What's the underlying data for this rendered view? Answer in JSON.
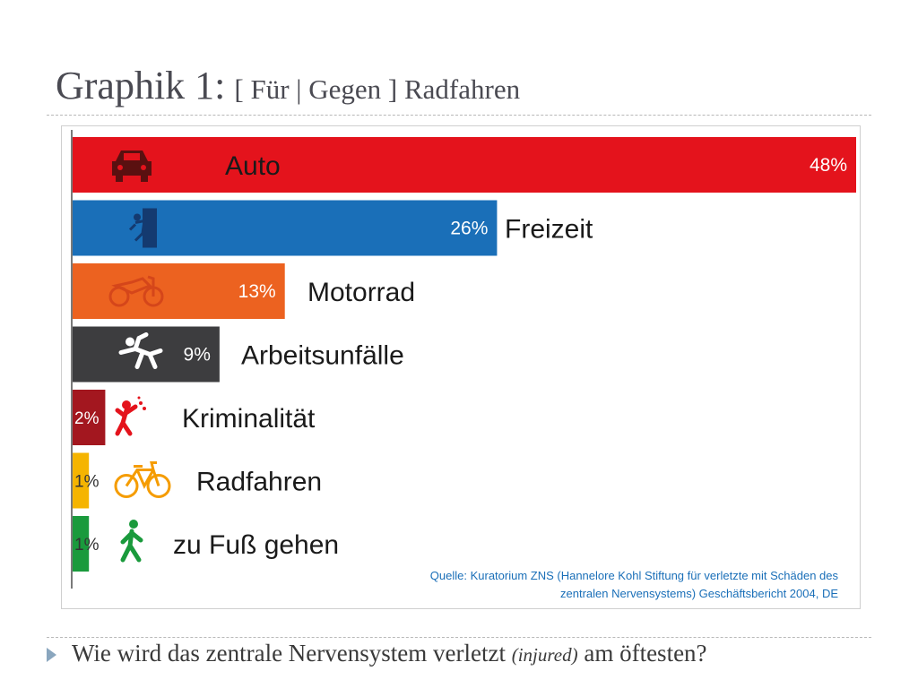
{
  "slide": {
    "title_main": "Graphik 1:",
    "title_sub": "[ Für | Gegen ]  Radfahren",
    "question_before": "Wie wird das zentrale Nervensystem verletzt",
    "question_italic": "(injured)",
    "question_after": "am öftesten?"
  },
  "chart_data": {
    "type": "bar",
    "orientation": "horizontal",
    "categories": [
      "Auto",
      "Freizeit",
      "Motorrad",
      "Arbeitsunfälle",
      "Kriminalität",
      "Radfahren",
      "zu Fuß gehen"
    ],
    "values": [
      48,
      26,
      13,
      9,
      2,
      1,
      1
    ],
    "value_labels": [
      "48%",
      "26%",
      "13%",
      "9%",
      "2%",
      "1%",
      "1%"
    ],
    "unit": "%",
    "colors": [
      "#e4131c",
      "#1a6fb8",
      "#ec6220",
      "#3d3d3f",
      "#a3171f",
      "#f5b400",
      "#1a9a3c"
    ],
    "icons": [
      "car-icon",
      "climber-icon",
      "motorcycle-icon",
      "falling-worker-icon",
      "punch-icon",
      "bicycle-icon",
      "walker-icon"
    ],
    "label_colors": [
      "#1a1a1a",
      "#1a1a1a",
      "#1a1a1a",
      "#1a1a1a",
      "#1a1a1a",
      "#1a1a1a",
      "#1a1a1a"
    ],
    "source_line1": "Quelle: Kuratorium ZNS (Hannelore Kohl Stiftung für verletzte mit Schäden des",
    "source_line2": "zentralen Nervensystems) Geschäftsbericht 2004, DE",
    "source_color": "#1a6fb8",
    "xlim": [
      0,
      48
    ],
    "grid": false,
    "legend": "none"
  }
}
